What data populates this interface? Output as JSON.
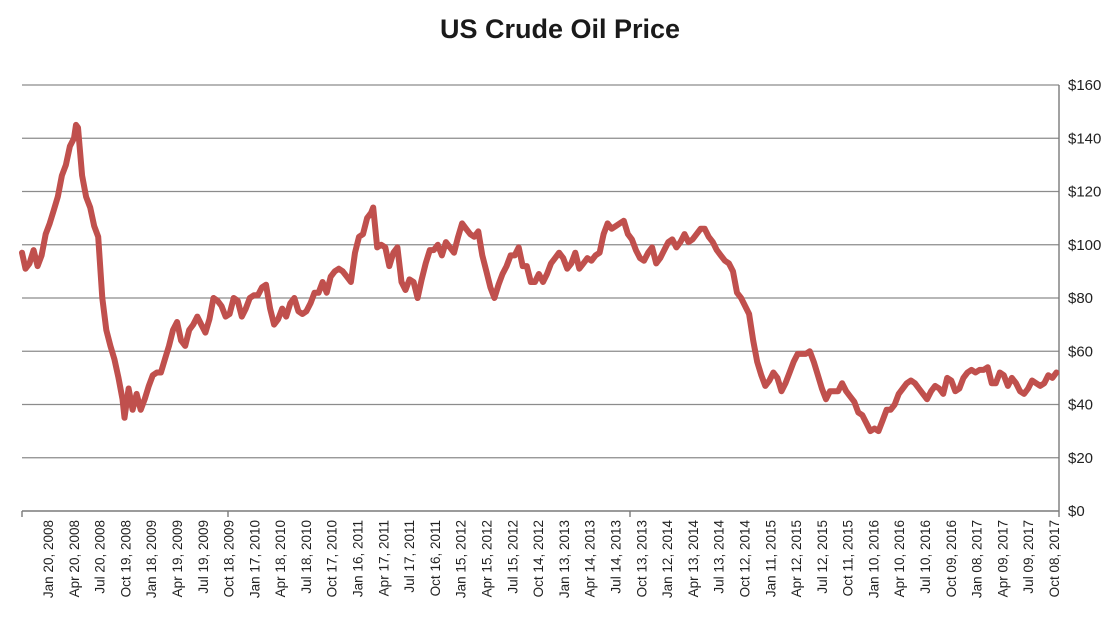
{
  "chart_data": {
    "type": "line",
    "title": "US Crude Oil Price",
    "xlabel": "",
    "ylabel": "",
    "ylim": [
      0,
      160
    ],
    "y_axis_side": "right",
    "y_tick_format": "currency",
    "y_ticks": [
      0,
      20,
      40,
      60,
      80,
      100,
      120,
      140,
      160
    ],
    "y_tick_labels": [
      "$0",
      "$20",
      "$40",
      "$60",
      "$80",
      "$100",
      "$120",
      "$140",
      "$160"
    ],
    "grid": true,
    "legend": "none",
    "x_tick_labels": [
      "Jan 20, 2008",
      "Apr 20, 2008",
      "Jul 20, 2008",
      "Oct 19, 2008",
      "Jan 18, 2009",
      "Apr 19, 2009",
      "Jul 19, 2009",
      "Oct 18, 2009",
      "Jan 17, 2010",
      "Apr 18, 2010",
      "Jul 18, 2010",
      "Oct 17, 2010",
      "Jan 16, 2011",
      "Apr 17, 2011",
      "Jul 17, 2011",
      "Oct 16, 2011",
      "Jan 15, 2012",
      "Apr 15, 2012",
      "Jul 15, 2012",
      "Oct 14, 2012",
      "Jan 13, 2013",
      "Apr 14, 2013",
      "Jul 14, 2013",
      "Oct 13, 2013",
      "Jan 12, 2014",
      "Apr 13, 2014",
      "Jul 13, 2014",
      "Oct 12, 2014",
      "Jan 11, 2015",
      "Apr 12, 2015",
      "Jul 12, 2015",
      "Oct 11, 2015",
      "Jan 10, 2016",
      "Apr 10, 2016",
      "Jul 10, 2016",
      "Oct 09, 2016",
      "Jan 08, 2017",
      "Apr 09, 2017",
      "Jul 09, 2017",
      "Oct 08, 2017"
    ],
    "x_range": [
      "2008-01-01",
      "2017-10-31"
    ],
    "series": [
      {
        "color": "#c0504d",
        "points": [
          [
            "2008-01-01",
            97
          ],
          [
            "2008-01-13",
            91
          ],
          [
            "2008-01-27",
            93
          ],
          [
            "2008-02-10",
            98
          ],
          [
            "2008-02-24",
            92
          ],
          [
            "2008-03-09",
            96
          ],
          [
            "2008-03-23",
            104
          ],
          [
            "2008-04-06",
            108
          ],
          [
            "2008-04-20",
            113
          ],
          [
            "2008-05-04",
            118
          ],
          [
            "2008-05-18",
            126
          ],
          [
            "2008-06-01",
            130
          ],
          [
            "2008-06-15",
            137
          ],
          [
            "2008-06-29",
            140
          ],
          [
            "2008-07-06",
            145
          ],
          [
            "2008-07-13",
            144
          ],
          [
            "2008-07-27",
            126
          ],
          [
            "2008-08-10",
            118
          ],
          [
            "2008-08-24",
            114
          ],
          [
            "2008-09-07",
            107
          ],
          [
            "2008-09-21",
            103
          ],
          [
            "2008-10-05",
            80
          ],
          [
            "2008-10-19",
            68
          ],
          [
            "2008-11-02",
            62
          ],
          [
            "2008-11-16",
            57
          ],
          [
            "2008-11-30",
            50
          ],
          [
            "2008-12-14",
            42
          ],
          [
            "2008-12-21",
            35
          ],
          [
            "2009-01-04",
            46
          ],
          [
            "2009-01-18",
            38
          ],
          [
            "2009-02-01",
            44
          ],
          [
            "2009-02-15",
            38
          ],
          [
            "2009-03-01",
            42
          ],
          [
            "2009-03-15",
            47
          ],
          [
            "2009-03-29",
            51
          ],
          [
            "2009-04-12",
            52
          ],
          [
            "2009-04-26",
            52
          ],
          [
            "2009-05-10",
            57
          ],
          [
            "2009-05-24",
            62
          ],
          [
            "2009-06-07",
            68
          ],
          [
            "2009-06-21",
            71
          ],
          [
            "2009-07-05",
            64
          ],
          [
            "2009-07-19",
            62
          ],
          [
            "2009-08-02",
            68
          ],
          [
            "2009-08-16",
            70
          ],
          [
            "2009-08-30",
            73
          ],
          [
            "2009-09-13",
            70
          ],
          [
            "2009-09-27",
            67
          ],
          [
            "2009-10-11",
            72
          ],
          [
            "2009-10-25",
            80
          ],
          [
            "2009-11-08",
            79
          ],
          [
            "2009-11-22",
            77
          ],
          [
            "2009-12-06",
            73
          ],
          [
            "2009-12-20",
            74
          ],
          [
            "2010-01-03",
            80
          ],
          [
            "2010-01-17",
            79
          ],
          [
            "2010-01-31",
            73
          ],
          [
            "2010-02-14",
            76
          ],
          [
            "2010-02-28",
            80
          ],
          [
            "2010-03-14",
            81
          ],
          [
            "2010-03-28",
            81
          ],
          [
            "2010-04-11",
            84
          ],
          [
            "2010-04-25",
            85
          ],
          [
            "2010-05-09",
            76
          ],
          [
            "2010-05-23",
            70
          ],
          [
            "2010-06-06",
            72
          ],
          [
            "2010-06-20",
            76
          ],
          [
            "2010-07-04",
            73
          ],
          [
            "2010-07-18",
            78
          ],
          [
            "2010-08-01",
            80
          ],
          [
            "2010-08-15",
            75
          ],
          [
            "2010-08-29",
            74
          ],
          [
            "2010-09-12",
            75
          ],
          [
            "2010-09-26",
            78
          ],
          [
            "2010-10-10",
            82
          ],
          [
            "2010-10-24",
            82
          ],
          [
            "2010-11-07",
            86
          ],
          [
            "2010-11-21",
            82
          ],
          [
            "2010-12-05",
            88
          ],
          [
            "2010-12-19",
            90
          ],
          [
            "2011-01-02",
            91
          ],
          [
            "2011-01-16",
            90
          ],
          [
            "2011-01-30",
            88
          ],
          [
            "2011-02-13",
            86
          ],
          [
            "2011-02-27",
            97
          ],
          [
            "2011-03-13",
            103
          ],
          [
            "2011-03-27",
            104
          ],
          [
            "2011-04-10",
            110
          ],
          [
            "2011-04-24",
            112
          ],
          [
            "2011-05-01",
            114
          ],
          [
            "2011-05-15",
            99
          ],
          [
            "2011-05-29",
            100
          ],
          [
            "2011-06-12",
            99
          ],
          [
            "2011-06-26",
            92
          ],
          [
            "2011-07-10",
            97
          ],
          [
            "2011-07-24",
            99
          ],
          [
            "2011-08-07",
            86
          ],
          [
            "2011-08-21",
            83
          ],
          [
            "2011-09-04",
            87
          ],
          [
            "2011-09-18",
            86
          ],
          [
            "2011-10-02",
            80
          ],
          [
            "2011-10-16",
            87
          ],
          [
            "2011-10-30",
            93
          ],
          [
            "2011-11-13",
            98
          ],
          [
            "2011-11-27",
            98
          ],
          [
            "2011-12-11",
            100
          ],
          [
            "2011-12-25",
            96
          ],
          [
            "2012-01-08",
            101
          ],
          [
            "2012-01-22",
            99
          ],
          [
            "2012-02-05",
            97
          ],
          [
            "2012-02-19",
            103
          ],
          [
            "2012-03-04",
            108
          ],
          [
            "2012-03-18",
            106
          ],
          [
            "2012-04-01",
            104
          ],
          [
            "2012-04-15",
            103
          ],
          [
            "2012-04-29",
            105
          ],
          [
            "2012-05-13",
            96
          ],
          [
            "2012-05-27",
            90
          ],
          [
            "2012-06-10",
            84
          ],
          [
            "2012-06-24",
            80
          ],
          [
            "2012-07-08",
            85
          ],
          [
            "2012-07-22",
            89
          ],
          [
            "2012-08-05",
            92
          ],
          [
            "2012-08-19",
            96
          ],
          [
            "2012-09-02",
            96
          ],
          [
            "2012-09-16",
            99
          ],
          [
            "2012-09-30",
            92
          ],
          [
            "2012-10-14",
            92
          ],
          [
            "2012-10-28",
            86
          ],
          [
            "2012-11-11",
            86
          ],
          [
            "2012-11-25",
            89
          ],
          [
            "2012-12-09",
            86
          ],
          [
            "2012-12-23",
            89
          ],
          [
            "2013-01-06",
            93
          ],
          [
            "2013-01-20",
            95
          ],
          [
            "2013-02-03",
            97
          ],
          [
            "2013-02-17",
            95
          ],
          [
            "2013-03-03",
            91
          ],
          [
            "2013-03-17",
            93
          ],
          [
            "2013-03-31",
            97
          ],
          [
            "2013-04-14",
            91
          ],
          [
            "2013-04-28",
            93
          ],
          [
            "2013-05-12",
            95
          ],
          [
            "2013-05-26",
            94
          ],
          [
            "2013-06-09",
            96
          ],
          [
            "2013-06-23",
            97
          ],
          [
            "2013-07-07",
            104
          ],
          [
            "2013-07-21",
            108
          ],
          [
            "2013-08-04",
            106
          ],
          [
            "2013-08-18",
            107
          ],
          [
            "2013-09-01",
            108
          ],
          [
            "2013-09-15",
            109
          ],
          [
            "2013-09-29",
            104
          ],
          [
            "2013-10-13",
            102
          ],
          [
            "2013-10-27",
            98
          ],
          [
            "2013-11-10",
            95
          ],
          [
            "2013-11-24",
            94
          ],
          [
            "2013-12-08",
            97
          ],
          [
            "2013-12-22",
            99
          ],
          [
            "2014-01-05",
            93
          ],
          [
            "2014-01-19",
            95
          ],
          [
            "2014-02-02",
            98
          ],
          [
            "2014-02-16",
            101
          ],
          [
            "2014-03-02",
            102
          ],
          [
            "2014-03-16",
            99
          ],
          [
            "2014-03-30",
            101
          ],
          [
            "2014-04-13",
            104
          ],
          [
            "2014-04-27",
            101
          ],
          [
            "2014-05-11",
            102
          ],
          [
            "2014-05-25",
            104
          ],
          [
            "2014-06-08",
            106
          ],
          [
            "2014-06-22",
            106
          ],
          [
            "2014-07-06",
            103
          ],
          [
            "2014-07-20",
            101
          ],
          [
            "2014-08-03",
            98
          ],
          [
            "2014-08-17",
            96
          ],
          [
            "2014-08-31",
            94
          ],
          [
            "2014-09-14",
            93
          ],
          [
            "2014-09-28",
            90
          ],
          [
            "2014-10-12",
            82
          ],
          [
            "2014-10-26",
            80
          ],
          [
            "2014-11-09",
            77
          ],
          [
            "2014-11-23",
            74
          ],
          [
            "2014-12-07",
            64
          ],
          [
            "2014-12-21",
            56
          ],
          [
            "2015-01-04",
            51
          ],
          [
            "2015-01-18",
            47
          ],
          [
            "2015-02-01",
            49
          ],
          [
            "2015-02-15",
            52
          ],
          [
            "2015-03-01",
            50
          ],
          [
            "2015-03-15",
            45
          ],
          [
            "2015-03-29",
            48
          ],
          [
            "2015-04-12",
            52
          ],
          [
            "2015-04-26",
            56
          ],
          [
            "2015-05-10",
            59
          ],
          [
            "2015-05-24",
            59
          ],
          [
            "2015-06-07",
            59
          ],
          [
            "2015-06-21",
            60
          ],
          [
            "2015-07-05",
            56
          ],
          [
            "2015-07-19",
            51
          ],
          [
            "2015-08-02",
            46
          ],
          [
            "2015-08-16",
            42
          ],
          [
            "2015-08-30",
            45
          ],
          [
            "2015-09-13",
            45
          ],
          [
            "2015-09-27",
            45
          ],
          [
            "2015-10-11",
            48
          ],
          [
            "2015-10-25",
            45
          ],
          [
            "2015-11-08",
            43
          ],
          [
            "2015-11-22",
            41
          ],
          [
            "2015-12-06",
            37
          ],
          [
            "2015-12-20",
            36
          ],
          [
            "2016-01-03",
            33
          ],
          [
            "2016-01-17",
            30
          ],
          [
            "2016-01-31",
            31
          ],
          [
            "2016-02-14",
            30
          ],
          [
            "2016-02-28",
            34
          ],
          [
            "2016-03-13",
            38
          ],
          [
            "2016-03-27",
            38
          ],
          [
            "2016-04-10",
            40
          ],
          [
            "2016-04-24",
            44
          ],
          [
            "2016-05-08",
            46
          ],
          [
            "2016-05-22",
            48
          ],
          [
            "2016-06-05",
            49
          ],
          [
            "2016-06-19",
            48
          ],
          [
            "2016-07-03",
            46
          ],
          [
            "2016-07-17",
            44
          ],
          [
            "2016-07-31",
            42
          ],
          [
            "2016-08-14",
            45
          ],
          [
            "2016-08-28",
            47
          ],
          [
            "2016-09-11",
            46
          ],
          [
            "2016-09-25",
            44
          ],
          [
            "2016-10-09",
            50
          ],
          [
            "2016-10-23",
            49
          ],
          [
            "2016-11-06",
            45
          ],
          [
            "2016-11-20",
            46
          ],
          [
            "2016-12-04",
            50
          ],
          [
            "2016-12-18",
            52
          ],
          [
            "2017-01-01",
            53
          ],
          [
            "2017-01-15",
            52
          ],
          [
            "2017-01-29",
            53
          ],
          [
            "2017-02-12",
            53
          ],
          [
            "2017-02-26",
            54
          ],
          [
            "2017-03-12",
            48
          ],
          [
            "2017-03-26",
            48
          ],
          [
            "2017-04-09",
            52
          ],
          [
            "2017-04-23",
            51
          ],
          [
            "2017-05-07",
            47
          ],
          [
            "2017-05-21",
            50
          ],
          [
            "2017-06-04",
            48
          ],
          [
            "2017-06-18",
            45
          ],
          [
            "2017-07-02",
            44
          ],
          [
            "2017-07-16",
            46
          ],
          [
            "2017-07-30",
            49
          ],
          [
            "2017-08-13",
            48
          ],
          [
            "2017-08-27",
            47
          ],
          [
            "2017-09-10",
            48
          ],
          [
            "2017-09-24",
            51
          ],
          [
            "2017-10-08",
            50
          ],
          [
            "2017-10-22",
            52
          ]
        ]
      }
    ]
  }
}
